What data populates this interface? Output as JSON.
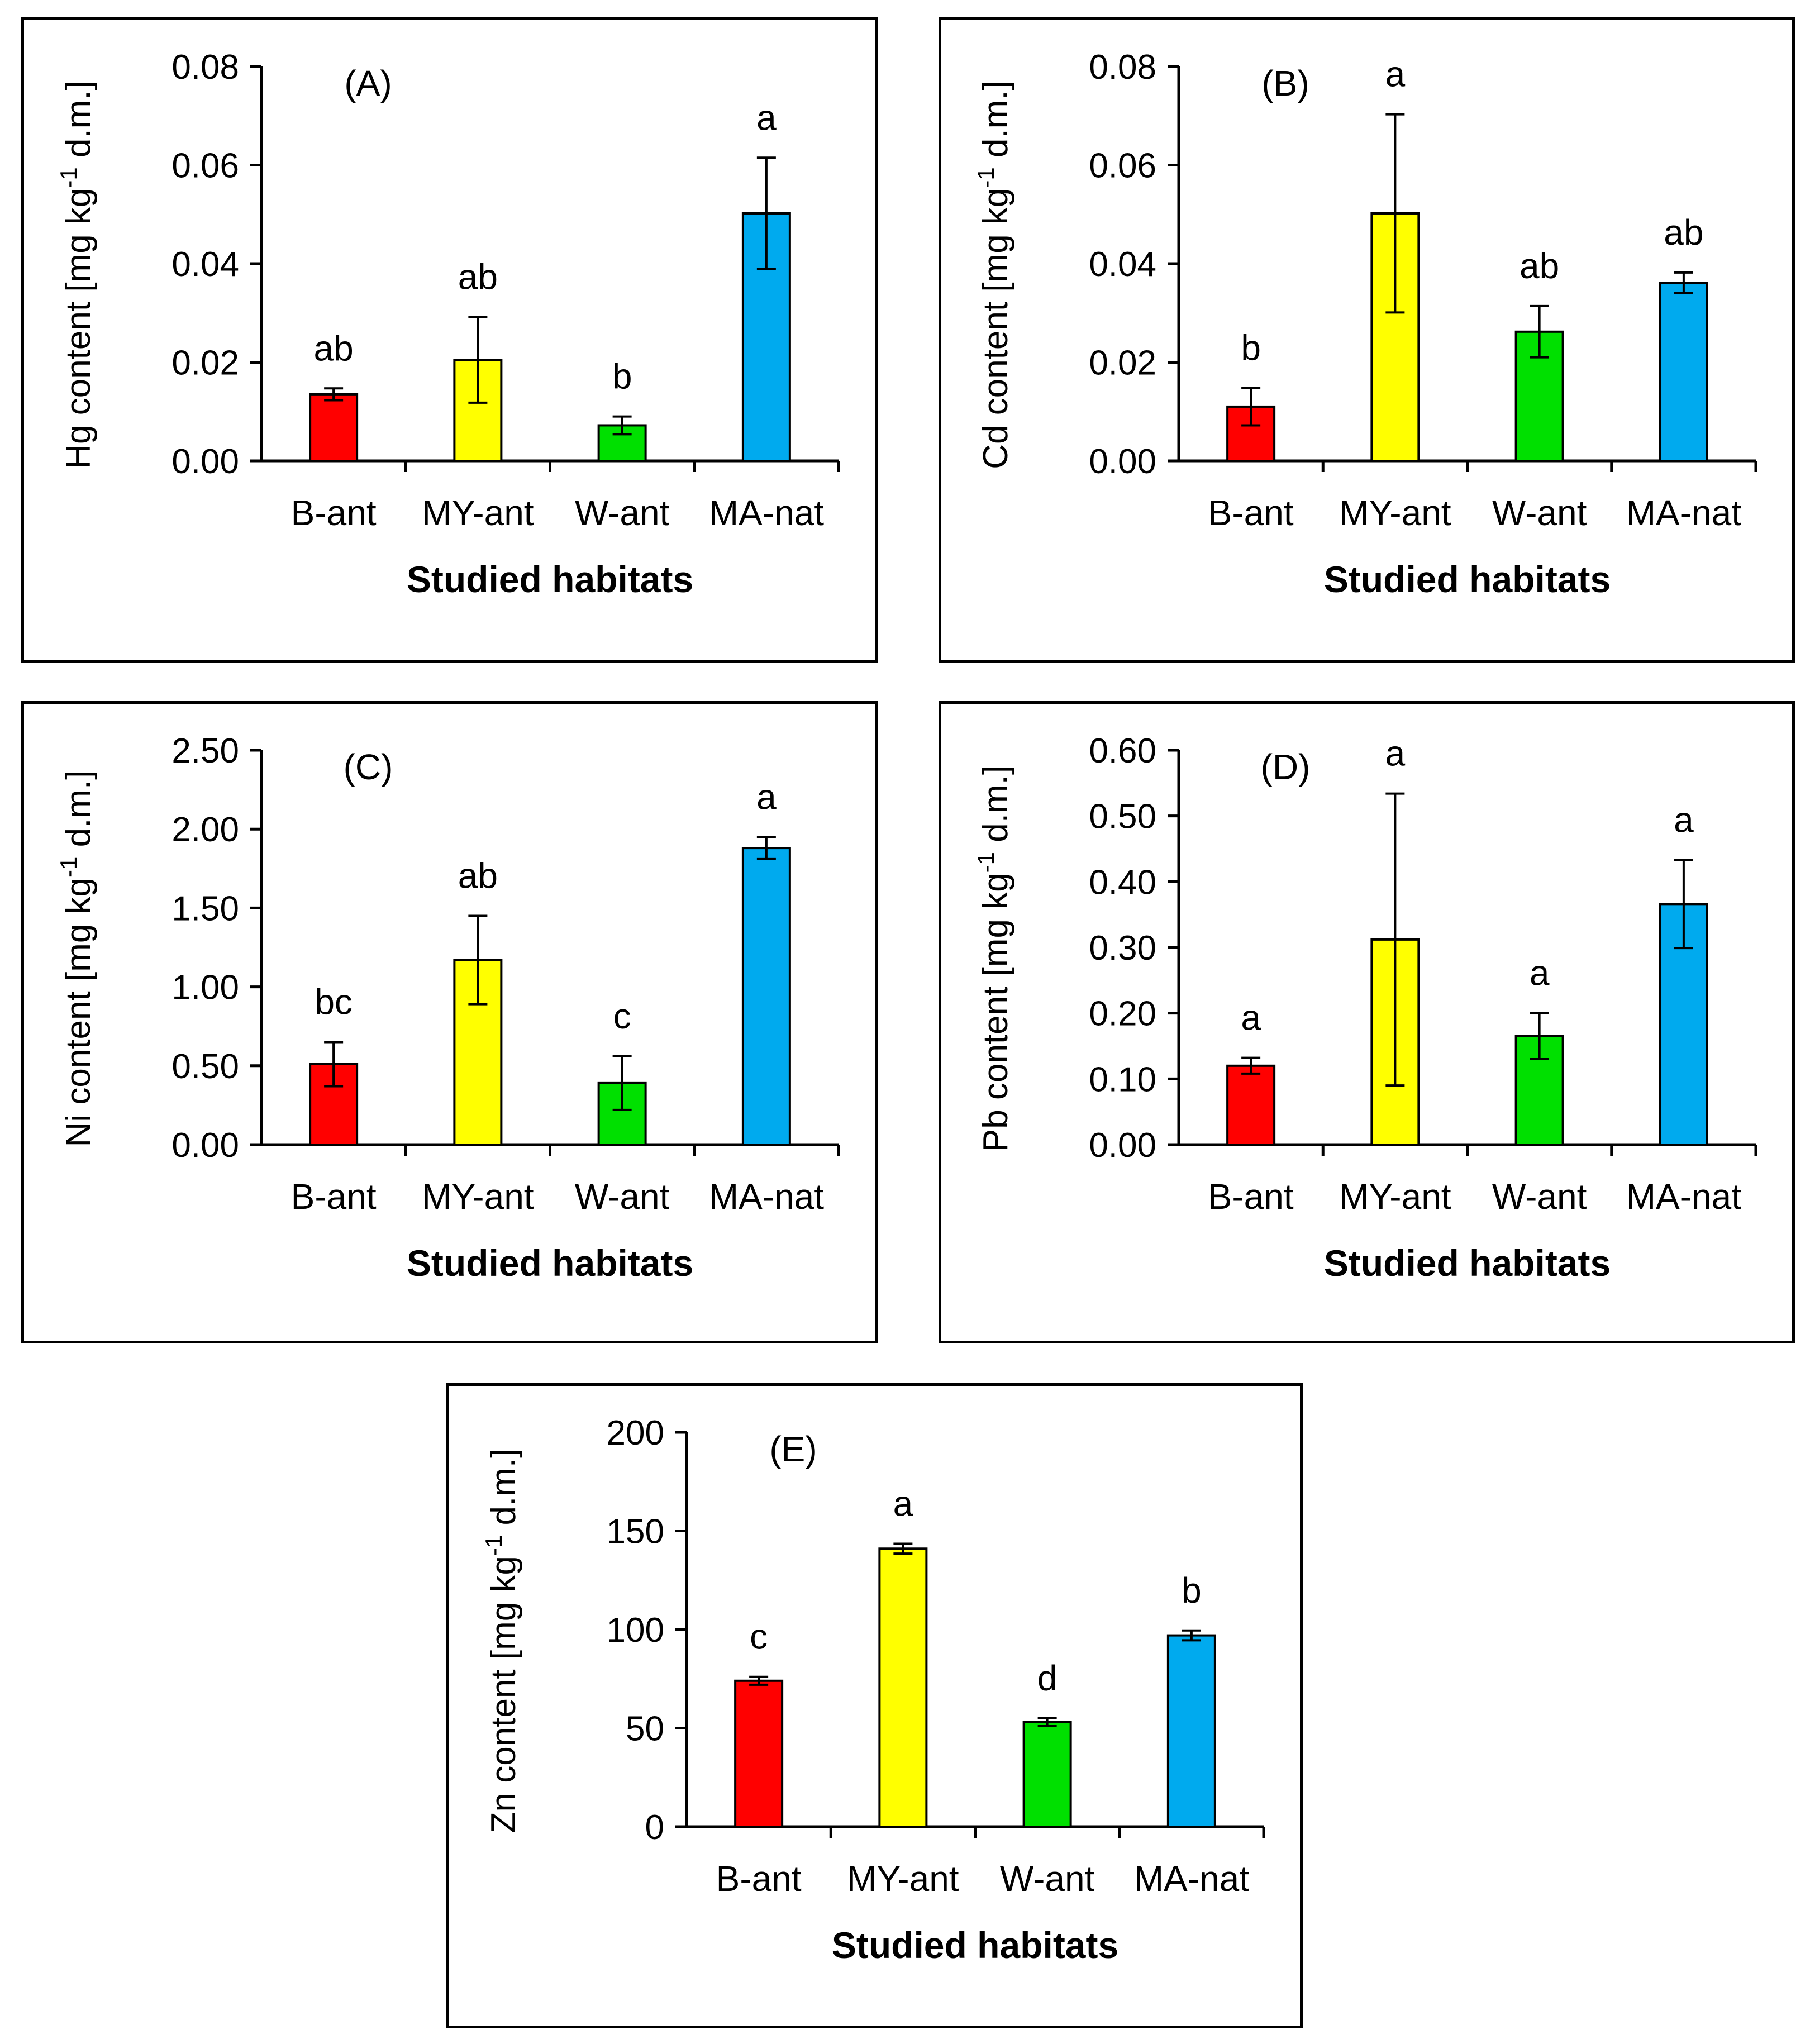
{
  "colors": {
    "B-ant": "#ff0000",
    "MY-ant": "#ffff00",
    "W-ant": "#00e000",
    "MA-nat": "#00aaee"
  },
  "chart_data": [
    {
      "id": "A",
      "type": "bar",
      "title": "(A)",
      "categories": [
        "B-ant",
        "MY-ant",
        "W-ant",
        "MA-nat"
      ],
      "values": [
        0.0135,
        0.0205,
        0.0072,
        0.0502
      ],
      "errors": [
        0.0012,
        0.0087,
        0.0018,
        0.0113
      ],
      "letters": [
        "ab",
        "ab",
        "b",
        "a"
      ],
      "xlabel": "Studied habitats",
      "ylabel": {
        "pre": "Hg content [mg kg",
        "sup": "-1",
        "post": " d.m.]"
      },
      "ylim": [
        0,
        0.08
      ],
      "yticks": [
        "0.00",
        "0.02",
        "0.04",
        "0.06",
        "0.08"
      ]
    },
    {
      "id": "B",
      "type": "bar",
      "title": "(B)",
      "categories": [
        "B-ant",
        "MY-ant",
        "W-ant",
        "MA-nat"
      ],
      "values": [
        0.011,
        0.0502,
        0.0262,
        0.0361
      ],
      "errors": [
        0.0038,
        0.0201,
        0.0052,
        0.0021
      ],
      "letters": [
        "b",
        "a",
        "ab",
        "ab"
      ],
      "xlabel": "Studied habitats",
      "ylabel": {
        "pre": "Cd content [mg kg",
        "sup": "-1",
        "post": " d.m.]"
      },
      "ylim": [
        0,
        0.08
      ],
      "yticks": [
        "0.00",
        "0.02",
        "0.04",
        "0.06",
        "0.08"
      ]
    },
    {
      "id": "C",
      "type": "bar",
      "title": "(C)",
      "categories": [
        "B-ant",
        "MY-ant",
        "W-ant",
        "MA-nat"
      ],
      "values": [
        0.51,
        1.17,
        0.39,
        1.88
      ],
      "errors": [
        0.14,
        0.28,
        0.17,
        0.07
      ],
      "letters": [
        "bc",
        "ab",
        "c",
        "a"
      ],
      "xlabel": "Studied habitats",
      "ylabel": {
        "pre": "Ni content [mg kg",
        "sup": "-1",
        "post": " d.m.]"
      },
      "ylim": [
        0,
        2.5
      ],
      "yticks": [
        "0.00",
        "0.50",
        "1.00",
        "1.50",
        "2.00",
        "2.50"
      ]
    },
    {
      "id": "D",
      "type": "bar",
      "title": "(D)",
      "categories": [
        "B-ant",
        "MY-ant",
        "W-ant",
        "MA-nat"
      ],
      "values": [
        0.12,
        0.312,
        0.165,
        0.366
      ],
      "errors": [
        0.012,
        0.222,
        0.035,
        0.067
      ],
      "letters": [
        "a",
        "a",
        "a",
        "a"
      ],
      "xlabel": "Studied habitats",
      "ylabel": {
        "pre": "Pb content [mg kg",
        "sup": "-1",
        "post": " d.m.]"
      },
      "ylim": [
        0,
        0.6
      ],
      "yticks": [
        "0.00",
        "0.10",
        "0.20",
        "0.30",
        "0.40",
        "0.50",
        "0.60"
      ]
    },
    {
      "id": "E",
      "type": "bar",
      "title": "(E)",
      "categories": [
        "B-ant",
        "MY-ant",
        "W-ant",
        "MA-nat"
      ],
      "values": [
        74,
        141,
        53,
        97
      ],
      "errors": [
        2,
        2.5,
        2,
        2.5
      ],
      "letters": [
        "c",
        "a",
        "d",
        "b"
      ],
      "xlabel": "Studied habitats",
      "ylabel": {
        "pre": "Zn content [mg kg",
        "sup": "-1",
        "post": " d.m.]"
      },
      "ylim": [
        0,
        200
      ],
      "yticks": [
        "0",
        "50",
        "100",
        "150",
        "200"
      ]
    }
  ]
}
